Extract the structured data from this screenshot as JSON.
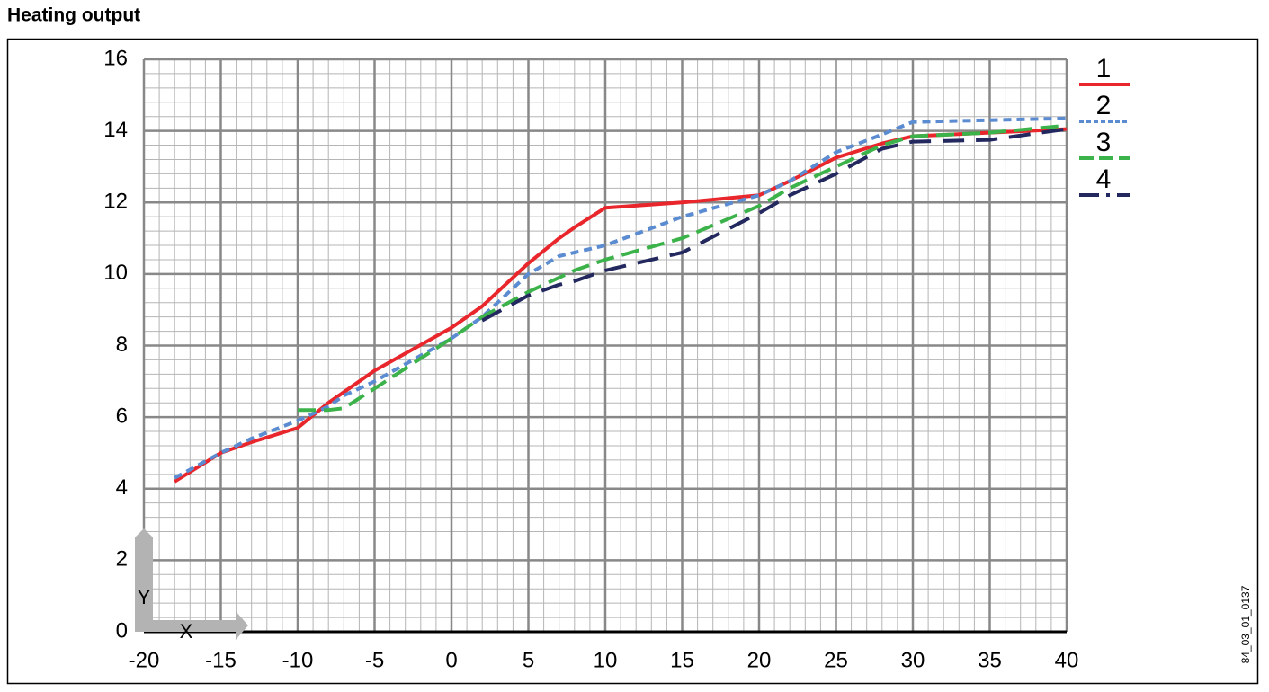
{
  "chart_data": {
    "type": "line",
    "title": "Heating output",
    "x": [
      -18,
      -15,
      -13,
      -10,
      -8,
      -7,
      -5,
      0,
      2,
      5,
      7,
      8,
      10,
      15,
      20,
      22,
      25,
      28,
      30,
      35,
      40
    ],
    "series": [
      {
        "name": "1",
        "color": "#e8262b",
        "style": "solid",
        "values": [
          4.2,
          5.0,
          5.3,
          5.7,
          6.4,
          6.7,
          7.3,
          8.5,
          9.1,
          10.3,
          11.0,
          11.3,
          11.85,
          12.0,
          12.2,
          12.6,
          13.25,
          13.65,
          13.85,
          13.95,
          14.05
        ]
      },
      {
        "name": "2",
        "color": "#5b8bd0",
        "style": "short-dash",
        "values": [
          4.3,
          5.0,
          5.4,
          5.9,
          6.3,
          6.6,
          7.0,
          8.2,
          8.8,
          10.0,
          10.5,
          10.6,
          10.8,
          11.6,
          12.2,
          12.6,
          13.4,
          13.9,
          14.25,
          14.3,
          14.35
        ]
      },
      {
        "name": "3",
        "color": "#3cb34a",
        "style": "dash",
        "values": [
          null,
          null,
          null,
          6.2,
          6.2,
          6.25,
          6.8,
          8.2,
          8.8,
          9.5,
          9.9,
          10.1,
          10.4,
          11.0,
          11.9,
          12.4,
          13.0,
          13.6,
          13.85,
          13.95,
          14.15
        ]
      },
      {
        "name": "4",
        "color": "#23285e",
        "style": "long-dash",
        "values": [
          null,
          null,
          null,
          null,
          null,
          null,
          null,
          null,
          8.7,
          9.4,
          9.7,
          9.8,
          10.1,
          10.6,
          11.7,
          12.2,
          12.8,
          13.5,
          13.7,
          13.75,
          14.05
        ]
      }
    ],
    "xlim": [
      -20,
      40
    ],
    "xticks": [
      -20,
      -15,
      -10,
      -5,
      0,
      5,
      10,
      15,
      20,
      25,
      30,
      35,
      40
    ],
    "ylim": [
      0,
      16
    ],
    "yticks": [
      0,
      2,
      4,
      6,
      8,
      10,
      12,
      14,
      16
    ],
    "grid": true,
    "x_label": "X",
    "y_label": "Y",
    "legend": "right",
    "figure_code": "84_03_01_0137"
  }
}
